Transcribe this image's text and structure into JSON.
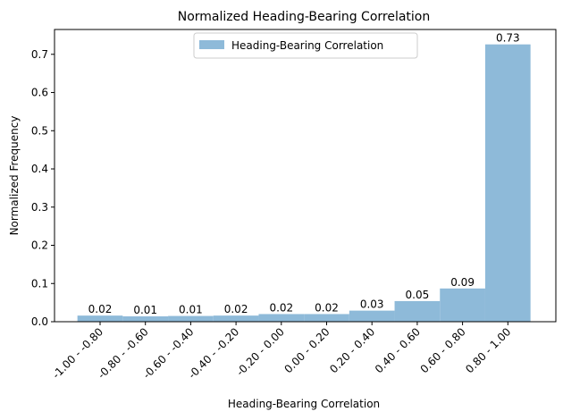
{
  "chart_data": {
    "type": "bar",
    "title": "Normalized Heading-Bearing Correlation",
    "xlabel": "Heading-Bearing Correlation",
    "ylabel": "Normalized Frequency",
    "categories": [
      "-1.00 - -0.80",
      "-0.80 - -0.60",
      "-0.60 - -0.40",
      "-0.40 - -0.20",
      "-0.20 - 0.00",
      "0.00 - 0.20",
      "0.20 - 0.40",
      "0.40 - 0.60",
      "0.60 - 0.80",
      "0.80 - 1.00"
    ],
    "series": [
      {
        "name": "Heading-Bearing Correlation",
        "values": [
          0.016,
          0.014,
          0.015,
          0.016,
          0.02,
          0.02,
          0.029,
          0.054,
          0.087,
          0.726
        ],
        "labels": [
          "0.02",
          "0.01",
          "0.01",
          "0.02",
          "0.02",
          "0.02",
          "0.03",
          "0.05",
          "0.09",
          "0.73"
        ],
        "color": "#8ebad9"
      }
    ],
    "ylim": [
      0,
      0.765
    ],
    "yticks": [
      "0.0",
      "0.1",
      "0.2",
      "0.3",
      "0.4",
      "0.5",
      "0.6",
      "0.7"
    ],
    "legend": "upper-center",
    "grid": false
  }
}
